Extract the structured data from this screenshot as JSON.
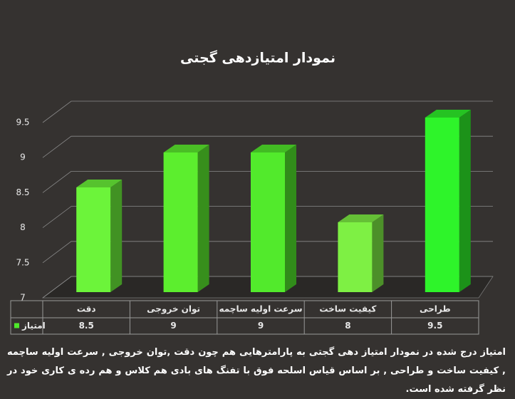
{
  "chart_data": {
    "type": "bar3d",
    "title": "نمودار امتیازدهی گجتی",
    "categories": [
      "دقت",
      "توان خروجی",
      "سرعت اولیه ساچمه",
      "کیفیت ساخت",
      "طراحی"
    ],
    "series": [
      {
        "name": "امتیاز",
        "color": "#4ee82a",
        "point_colors": [
          "#6cf43a",
          "#5cee2e",
          "#52ea2c",
          "#7ef044",
          "#2ef42a"
        ],
        "values": [
          8.5,
          9,
          9,
          8,
          9.5
        ]
      }
    ],
    "ylim": [
      7,
      9.5
    ],
    "yticks": [
      7,
      7.5,
      8,
      8.5,
      9,
      9.5
    ],
    "grid": true,
    "data_table": true
  },
  "caption": "امتیاز درج شده در نمودار امتیاز دهی گجتی  به پارامترهایی هم چون دقت ,توان خروجی , سرعت اولیه ساچمه , کیفیت ساخت و طراحی , بر اساس قیاس اسلحه فوق با تفنگ های بادی هم کلاس و هم رده ی کاری خود در نظر گرفته شده است."
}
